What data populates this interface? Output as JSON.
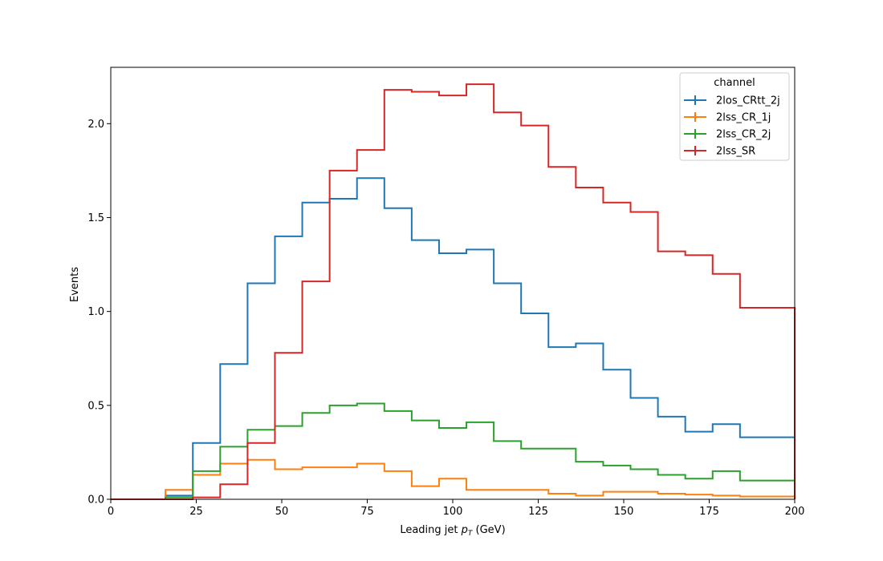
{
  "chart_data": {
    "type": "histogram-step",
    "title": "",
    "xlabel": "Leading jet  p_T (GeV)",
    "xlabel_parts": {
      "prefix": "Leading jet  ",
      "var": "p",
      "sub": "T",
      "suffix": " (GeV)"
    },
    "ylabel": "Events",
    "xlim": [
      0,
      200
    ],
    "ylim": [
      0,
      2.3
    ],
    "x_ticks": [
      0,
      25,
      50,
      75,
      100,
      125,
      150,
      175,
      200
    ],
    "x_tick_labels": [
      "0",
      "25",
      "50",
      "75",
      "100",
      "125",
      "150",
      "175",
      "200"
    ],
    "y_ticks": [
      0,
      0.5,
      1.0,
      1.5,
      2.0
    ],
    "y_tick_labels": [
      "0.0",
      "0.5",
      "1.0",
      "1.5",
      "2.0"
    ],
    "grid": false,
    "legend": {
      "title": "channel",
      "placement": "top-right"
    },
    "bin_edges": [
      0,
      8,
      16,
      24,
      32,
      40,
      48,
      56,
      64,
      72,
      80,
      88,
      96,
      104,
      112,
      120,
      128,
      136,
      144,
      152,
      160,
      168,
      176,
      184,
      192,
      200
    ],
    "series": [
      {
        "name": "2los_CRtt_2j",
        "color": "#1f77b4",
        "values": [
          0,
          0,
          0.02,
          0.3,
          0.72,
          1.15,
          1.4,
          1.58,
          1.6,
          1.71,
          1.55,
          1.38,
          1.31,
          1.33,
          1.15,
          0.99,
          0.81,
          0.83,
          0.69,
          0.54,
          0.44,
          0.36,
          0.4,
          0.33,
          0.33
        ]
      },
      {
        "name": "2lss_CR_1j",
        "color": "#ff7f0e",
        "values": [
          0,
          0,
          0.05,
          0.13,
          0.19,
          0.21,
          0.16,
          0.17,
          0.17,
          0.19,
          0.15,
          0.07,
          0.11,
          0.05,
          0.05,
          0.05,
          0.03,
          0.02,
          0.04,
          0.04,
          0.03,
          0.025,
          0.02,
          0.015,
          0.015
        ]
      },
      {
        "name": "2lss_CR_2j",
        "color": "#2ca02c",
        "values": [
          0,
          0,
          0.01,
          0.15,
          0.28,
          0.37,
          0.39,
          0.46,
          0.5,
          0.51,
          0.47,
          0.42,
          0.38,
          0.41,
          0.31,
          0.27,
          0.27,
          0.2,
          0.18,
          0.16,
          0.13,
          0.11,
          0.15,
          0.1,
          0.1
        ]
      },
      {
        "name": "2lss_SR",
        "color": "#d62728",
        "values": [
          0,
          0,
          0,
          0.01,
          0.08,
          0.3,
          0.78,
          1.16,
          1.75,
          1.86,
          2.18,
          2.17,
          2.15,
          2.21,
          2.06,
          1.99,
          1.77,
          1.66,
          1.58,
          1.53,
          1.32,
          1.3,
          1.2,
          1.02,
          1.02
        ]
      }
    ]
  }
}
